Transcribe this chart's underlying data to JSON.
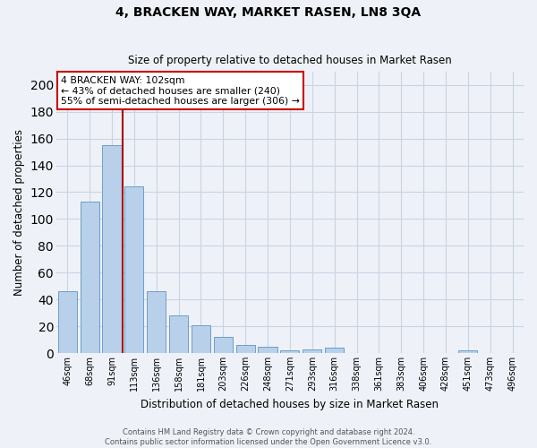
{
  "title1": "4, BRACKEN WAY, MARKET RASEN, LN8 3QA",
  "title2": "Size of property relative to detached houses in Market Rasen",
  "xlabel": "Distribution of detached houses by size in Market Rasen",
  "ylabel": "Number of detached properties",
  "categories": [
    "46sqm",
    "68sqm",
    "91sqm",
    "113sqm",
    "136sqm",
    "158sqm",
    "181sqm",
    "203sqm",
    "226sqm",
    "248sqm",
    "271sqm",
    "293sqm",
    "316sqm",
    "338sqm",
    "361sqm",
    "383sqm",
    "406sqm",
    "428sqm",
    "451sqm",
    "473sqm",
    "496sqm"
  ],
  "values": [
    46,
    113,
    155,
    124,
    46,
    28,
    21,
    12,
    6,
    5,
    2,
    3,
    4,
    0,
    0,
    0,
    0,
    0,
    2,
    0,
    0
  ],
  "bar_color": "#b8d0ea",
  "bar_edge_color": "#6e9dc8",
  "vline_x": 2.5,
  "vline_color": "#aa0000",
  "annotation_text": "4 BRACKEN WAY: 102sqm\n← 43% of detached houses are smaller (240)\n55% of semi-detached houses are larger (306) →",
  "annotation_box_color": "#ffffff",
  "annotation_box_edge": "#cc0000",
  "ylim": [
    0,
    210
  ],
  "yticks": [
    0,
    20,
    40,
    60,
    80,
    100,
    120,
    140,
    160,
    180,
    200
  ],
  "footer1": "Contains HM Land Registry data © Crown copyright and database right 2024.",
  "footer2": "Contains public sector information licensed under the Open Government Licence v3.0.",
  "bg_color": "#eef2f8",
  "grid_color": "#c8d4e4"
}
